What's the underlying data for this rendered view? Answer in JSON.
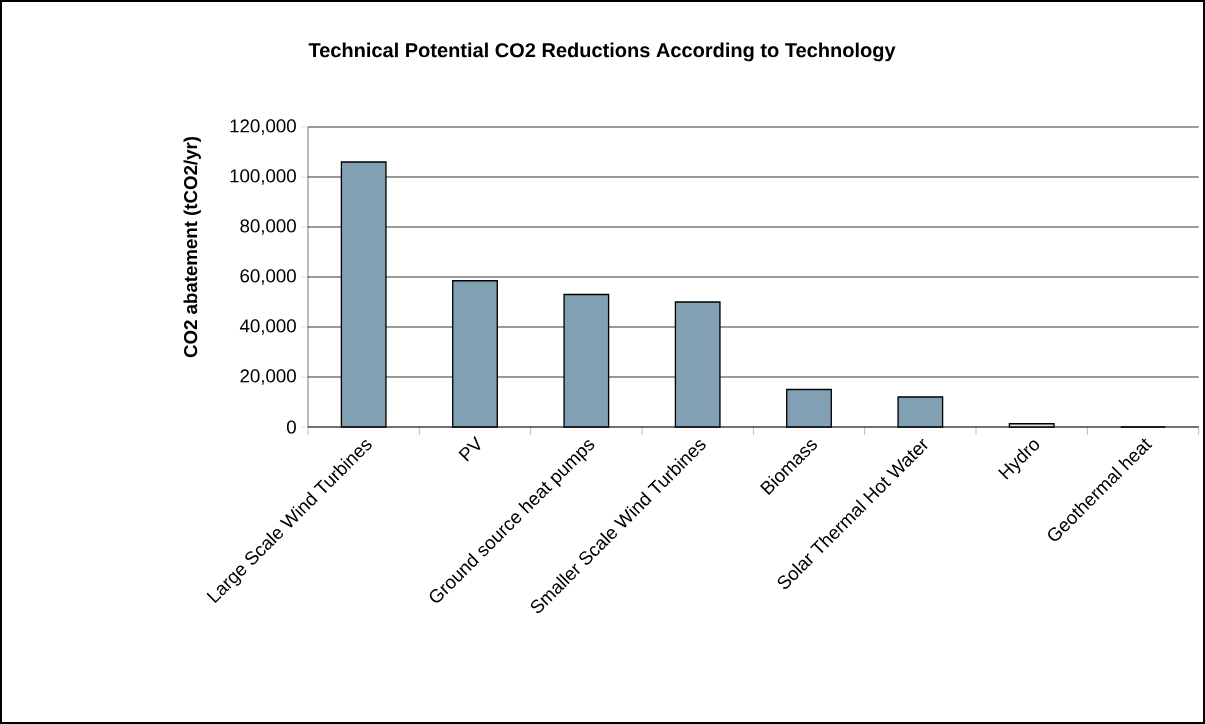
{
  "chart_data": {
    "type": "bar",
    "title": "Technical Potential CO2 Reductions According to Technology",
    "ylabel": "CO2 abatement (tCO2/yr)",
    "categories": [
      "Large Scale Wind Turbines",
      "PV",
      "Ground source heat pumps",
      "Smaller Scale Wind Turbines",
      "Biomass",
      "Solar Thermal Hot Water",
      "Hydro",
      "Geothermal heat"
    ],
    "values": [
      106000,
      58500,
      53000,
      50000,
      15000,
      12000,
      1300,
      0
    ],
    "colors": [
      "#82a0b4",
      "#82a0b4",
      "#82a0b4",
      "#82a0b4",
      "#82a0b4",
      "#82a0b4",
      "#e0e0e0",
      "#82a0b4"
    ],
    "ylim": [
      0,
      120000
    ],
    "yticks": [
      {
        "value": 0,
        "label": "0"
      },
      {
        "value": 20000,
        "label": "20,000"
      },
      {
        "value": 40000,
        "label": "40,000"
      },
      {
        "value": 60000,
        "label": "60,000"
      },
      {
        "value": 80000,
        "label": "80,000"
      },
      {
        "value": 100000,
        "label": "100,000"
      },
      {
        "value": 120000,
        "label": "120,000"
      }
    ],
    "grid": "y"
  }
}
